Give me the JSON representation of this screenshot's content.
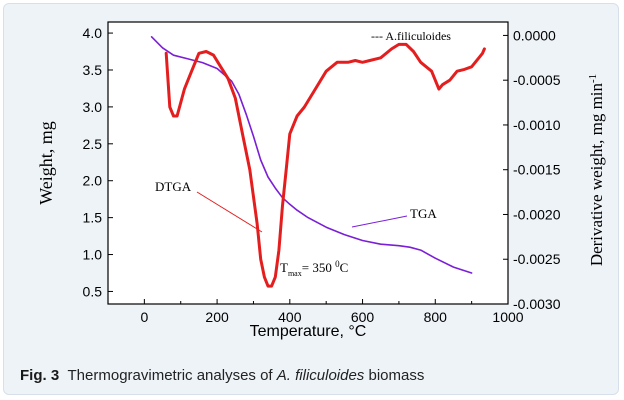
{
  "chart_data": {
    "type": "line",
    "title": "",
    "xlabel": "Temperature, °C",
    "ylabel_left": "Weight, mg",
    "ylabel_right": "Derivative weight, mg min",
    "ylabel_right_sup": "-1",
    "xlim": [
      -100,
      1000
    ],
    "ylim_left": [
      0.33,
      4.15
    ],
    "ylim_right": [
      -0.003,
      0.00015
    ],
    "x_ticks": [
      "0",
      "200",
      "400",
      "600",
      "800",
      "1000"
    ],
    "y_left_ticks": [
      "0.5",
      "1.0",
      "1.5",
      "2.0",
      "2.5",
      "3.0",
      "3.5",
      "4.0"
    ],
    "y_right_ticks": [
      "-0.0030",
      "-0.0025",
      "-0.0020",
      "-0.0015",
      "-0.0010",
      "-0.0005",
      "0.0000"
    ],
    "legend": "--- A.filiculoides",
    "annotations": {
      "dtga": "DTGA",
      "tga": "TGA",
      "tmax_t": "T",
      "tmax_sub": "max",
      "tmax_eq": "= 350 ",
      "tmax_sup": "0",
      "tmax_unit": "C"
    },
    "series": [
      {
        "name": "TGA",
        "axis": "left",
        "color": "#7a1fd6",
        "x": [
          20,
          50,
          80,
          120,
          160,
          200,
          240,
          260,
          280,
          300,
          320,
          340,
          360,
          380,
          400,
          420,
          450,
          500,
          550,
          600,
          650,
          700,
          730,
          760,
          800,
          850,
          900
        ],
        "y": [
          3.95,
          3.8,
          3.7,
          3.65,
          3.6,
          3.52,
          3.35,
          3.17,
          2.9,
          2.6,
          2.28,
          2.05,
          1.9,
          1.77,
          1.68,
          1.6,
          1.5,
          1.37,
          1.27,
          1.19,
          1.14,
          1.12,
          1.1,
          1.06,
          0.95,
          0.83,
          0.75
        ]
      },
      {
        "name": "DTGA",
        "axis": "right",
        "color": "#e41e1e",
        "x": [
          60,
          70,
          80,
          90,
          110,
          130,
          150,
          170,
          190,
          210,
          230,
          250,
          270,
          290,
          310,
          320,
          330,
          340,
          350,
          360,
          370,
          380,
          390,
          400,
          420,
          440,
          470,
          500,
          530,
          560,
          580,
          600,
          620,
          650,
          680,
          700,
          720,
          740,
          760,
          790,
          810,
          820,
          840,
          860,
          880,
          900,
          920,
          930,
          935
        ],
        "y": [
          -0.0002,
          -0.0008,
          -0.0009,
          -0.0009,
          -0.0006,
          -0.0004,
          -0.0002,
          -0.00018,
          -0.00022,
          -0.00035,
          -0.00048,
          -0.0007,
          -0.0011,
          -0.0015,
          -0.0021,
          -0.0025,
          -0.0027,
          -0.0028,
          -0.0028,
          -0.0027,
          -0.0024,
          -0.0019,
          -0.0015,
          -0.0011,
          -0.0009,
          -0.0008,
          -0.0006,
          -0.0004,
          -0.0003,
          -0.0003,
          -0.00028,
          -0.0003,
          -0.00028,
          -0.00025,
          -0.00015,
          -0.0001,
          -0.0001,
          -0.00018,
          -0.0003,
          -0.0004,
          -0.0006,
          -0.00055,
          -0.0005,
          -0.0004,
          -0.00038,
          -0.00035,
          -0.00025,
          -0.0002,
          -0.00015
        ]
      }
    ]
  },
  "caption": {
    "label": "Fig. 3",
    "text_before": "Thermogravimetric analyses of ",
    "text_italic": "A. filiculoides",
    "text_after": " biomass"
  }
}
